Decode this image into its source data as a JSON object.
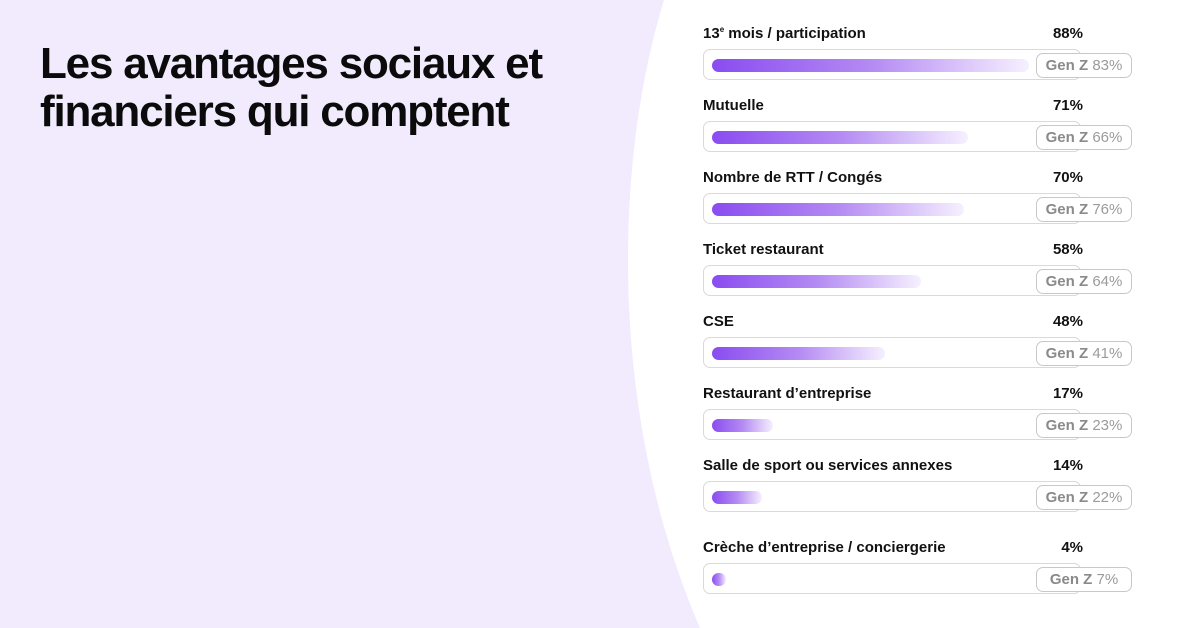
{
  "title": "Les avantages sociaux et financiers qui comptent",
  "colors": {
    "background_panel": "#f1ebfd",
    "bar_start": "#8a4cf0",
    "bar_end": "#f6f0ff"
  },
  "chart_data": {
    "type": "bar",
    "orientation": "horizontal",
    "categories": [
      "13e mois / participation",
      "Mutuelle",
      "Nombre de RTT / Congés",
      "Ticket restaurant",
      "CSE",
      "Restaurant d’entreprise",
      "Salle de sport ou services annexes",
      "Crèche d’entreprise / conciergerie"
    ],
    "series": [
      {
        "values": [
          88,
          71,
          70,
          58,
          48,
          17,
          14,
          4
        ]
      },
      {
        "name": "Gen Z",
        "values": [
          83,
          66,
          76,
          64,
          41,
          23,
          22,
          7
        ]
      }
    ],
    "value_labels": [
      "88%",
      "71%",
      "70%",
      "58%",
      "48%",
      "17%",
      "14%",
      "4%"
    ],
    "genz_labels": [
      "83%",
      "66%",
      "76%",
      "64%",
      "41%",
      "23%",
      "22%",
      "7%"
    ],
    "genz_prefix": "Gen Z",
    "xlim": [
      0,
      100
    ]
  }
}
